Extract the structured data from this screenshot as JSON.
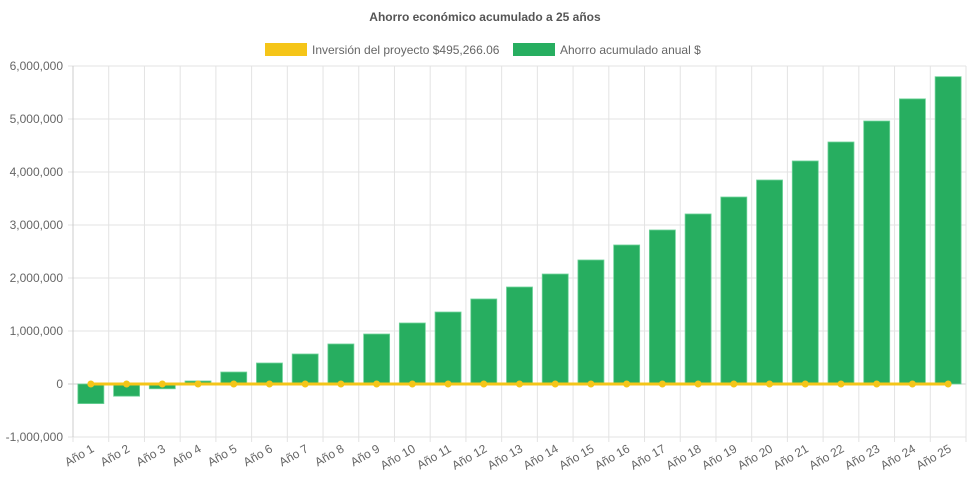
{
  "chart_data": {
    "type": "bar",
    "title": "Ahorro económico acumulado a 25 años",
    "categories": [
      "Año 1",
      "Año 2",
      "Año 3",
      "Año 4",
      "Año 5",
      "Año 6",
      "Año 7",
      "Año 8",
      "Año 9",
      "Año 10",
      "Año 11",
      "Año 12",
      "Año 13",
      "Año 14",
      "Año 15",
      "Año 16",
      "Año 17",
      "Año 18",
      "Año 19",
      "Año 20",
      "Año 21",
      "Año 22",
      "Año 23",
      "Año 24",
      "Año 25"
    ],
    "series": [
      {
        "name": "Inversión del proyecto $495,266.06",
        "type": "line",
        "color": "#f5c518",
        "values": [
          0,
          0,
          0,
          0,
          0,
          0,
          0,
          0,
          0,
          0,
          0,
          0,
          0,
          0,
          0,
          0,
          0,
          0,
          0,
          0,
          0,
          0,
          0,
          0,
          0
        ]
      },
      {
        "name": "Ahorro acumulado anual $",
        "type": "bar",
        "color": "#27ae60",
        "values": [
          -370000,
          -230000,
          -90000,
          57000,
          226000,
          396000,
          566000,
          755000,
          943000,
          1151000,
          1358000,
          1604000,
          1830000,
          2075000,
          2340000,
          2623000,
          2906000,
          3208000,
          3528000,
          3849000,
          4208000,
          4566000,
          4962000,
          5380000,
          5798000
        ]
      }
    ],
    "ylim": [
      -1000000,
      6000000
    ],
    "yticks": [
      "6,000,000",
      "5,000,000",
      "4,000,000",
      "3,000,000",
      "2,000,000",
      "1,000,000",
      "0",
      "-1,000,000"
    ],
    "ytick_values": [
      6000000,
      5000000,
      4000000,
      3000000,
      2000000,
      1000000,
      0,
      -1000000
    ],
    "grid": true,
    "legend": "top"
  }
}
